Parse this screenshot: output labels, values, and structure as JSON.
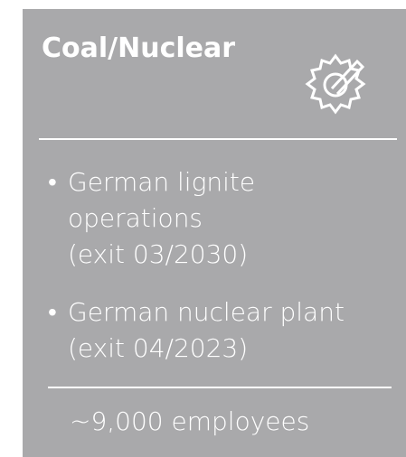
{
  "header": {
    "title": "Coal/Nuclear"
  },
  "items": [
    {
      "lines": [
        "German lignite",
        "operations",
        "(exit 03/2030)"
      ]
    },
    {
      "lines": [
        "German nuclear plant",
        "(exit 04/2023)"
      ]
    }
  ],
  "footer": "~9,000 employees"
}
